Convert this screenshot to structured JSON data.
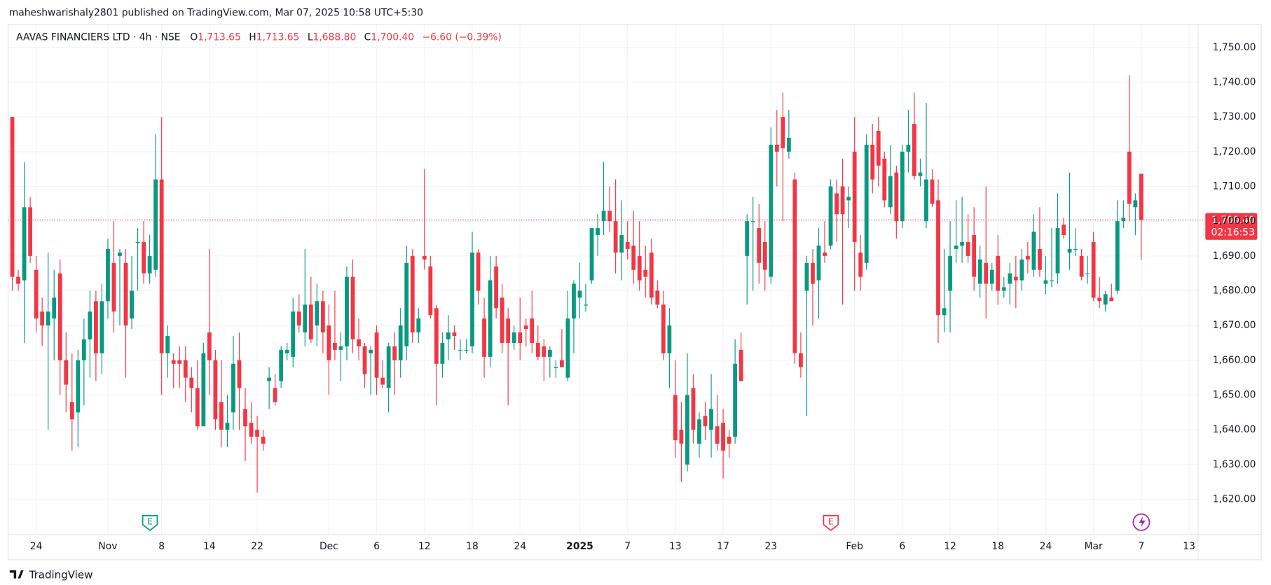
{
  "header": {
    "published": "maheshwarishaly2801 published on TradingView.com, Mar 07, 2025 10:58 UTC+5:30",
    "symbol": "AAVAS FINANCIERS LTD · 4h · NSE",
    "o_key": "O",
    "o": "1,713.65",
    "h_key": "H",
    "h": "1,713.65",
    "l_key": "L",
    "l": "1,688.80",
    "c_key": "C",
    "c": "1,700.40",
    "change": "−6.60 (−0.39%)"
  },
  "last_price": {
    "label": "1,700.40",
    "countdown": "02:16:53"
  },
  "events": [
    {
      "label": "E"
    },
    {
      "label": "E"
    }
  ],
  "footer": "TradingView",
  "chart_data": {
    "type": "candlestick",
    "up_color": "#089981",
    "down_color": "#f23645",
    "grid": true,
    "xlim": [
      -0.7,
      198.5
    ],
    "ylim": [
      1609.9,
      1756.6
    ],
    "yticks": [
      {
        "value": 1620,
        "label": "1,620.00"
      },
      {
        "value": 1630,
        "label": "1,630.00"
      },
      {
        "value": 1640,
        "label": "1,640.00"
      },
      {
        "value": 1650,
        "label": "1,650.00"
      },
      {
        "value": 1660,
        "label": "1,660.00"
      },
      {
        "value": 1670,
        "label": "1,670.00"
      },
      {
        "value": 1680,
        "label": "1,680.00"
      },
      {
        "value": 1690,
        "label": "1,690.00"
      },
      {
        "value": 1700,
        "label": "1,700.00"
      },
      {
        "value": 1710,
        "label": "1,710.00"
      },
      {
        "value": 1720,
        "label": "1,720.00"
      },
      {
        "value": 1730,
        "label": "1,730.00"
      },
      {
        "value": 1740,
        "label": "1,740.00"
      },
      {
        "value": 1750,
        "label": "1,750.00"
      }
    ],
    "xticks": [
      {
        "value": 4,
        "label": "24"
      },
      {
        "value": 16,
        "label": "Nov"
      },
      {
        "value": 25,
        "label": "8"
      },
      {
        "value": 33,
        "label": "14"
      },
      {
        "value": 41,
        "label": "22"
      },
      {
        "value": 53,
        "label": "Dec"
      },
      {
        "value": 61,
        "label": "6"
      },
      {
        "value": 69,
        "label": "12"
      },
      {
        "value": 77,
        "label": "18"
      },
      {
        "value": 85,
        "label": "24"
      },
      {
        "value": 95,
        "label": "2025"
      },
      {
        "value": 103,
        "label": "7"
      },
      {
        "value": 111,
        "label": "13"
      },
      {
        "value": 119,
        "label": "17"
      },
      {
        "value": 127,
        "label": "23"
      },
      {
        "value": 141,
        "label": "Feb"
      },
      {
        "value": 149,
        "label": "6"
      },
      {
        "value": 157,
        "label": "12"
      },
      {
        "value": 165,
        "label": "18"
      },
      {
        "value": 173,
        "label": "24"
      },
      {
        "value": 181,
        "label": "Mar"
      },
      {
        "value": 189,
        "label": "7"
      },
      {
        "value": 197,
        "label": "13"
      }
    ],
    "ohlc": [
      [
        1730,
        1730,
        1680,
        1684
      ],
      [
        1684,
        1686,
        1680,
        1682
      ],
      [
        1683,
        1717,
        1665,
        1704
      ],
      [
        1704,
        1707,
        1688,
        1690
      ],
      [
        1686,
        1690,
        1668,
        1672
      ],
      [
        1674,
        1678,
        1664,
        1670
      ],
      [
        1670,
        1691,
        1640,
        1674
      ],
      [
        1672,
        1686,
        1660,
        1678
      ],
      [
        1685,
        1689,
        1650,
        1660
      ],
      [
        1660,
        1668,
        1645,
        1653
      ],
      [
        1648,
        1662,
        1634,
        1643
      ],
      [
        1645,
        1663,
        1635,
        1660
      ],
      [
        1660,
        1672,
        1647,
        1666
      ],
      [
        1666,
        1680,
        1655,
        1674
      ],
      [
        1677,
        1680,
        1654,
        1662
      ],
      [
        1662,
        1682,
        1656,
        1677
      ],
      [
        1677,
        1695,
        1672,
        1692
      ],
      [
        1688,
        1700,
        1668,
        1674
      ],
      [
        1690,
        1692,
        1670,
        1691
      ],
      [
        1688,
        1692,
        1655,
        1670
      ],
      [
        1672,
        1690,
        1669,
        1680
      ],
      [
        1694,
        1698,
        1680,
        1694
      ],
      [
        1694,
        1700,
        1682,
        1685
      ],
      [
        1685,
        1696,
        1682,
        1690
      ],
      [
        1686,
        1725,
        1684,
        1712
      ],
      [
        1712,
        1730,
        1650,
        1662
      ],
      [
        1662,
        1670,
        1655,
        1667
      ],
      [
        1660,
        1662,
        1652,
        1659
      ],
      [
        1660,
        1664,
        1652,
        1659
      ],
      [
        1660,
        1664,
        1648,
        1655
      ],
      [
        1655,
        1658,
        1645,
        1652
      ],
      [
        1652,
        1660,
        1640,
        1641
      ],
      [
        1641,
        1665,
        1642,
        1662
      ],
      [
        1668,
        1692,
        1650,
        1660
      ],
      [
        1660,
        1663,
        1640,
        1643
      ],
      [
        1648,
        1660,
        1635,
        1640
      ],
      [
        1640,
        1650,
        1635,
        1642
      ],
      [
        1645,
        1667,
        1640,
        1659
      ],
      [
        1660,
        1668,
        1640,
        1652
      ],
      [
        1646,
        1652,
        1631,
        1641
      ],
      [
        1642,
        1648,
        1636,
        1638
      ],
      [
        1640,
        1644,
        1622,
        1638
      ],
      [
        1638,
        1640,
        1634,
        1636
      ],
      [
        1654,
        1658,
        1646,
        1655
      ],
      [
        1652,
        1656,
        1647,
        1648
      ],
      [
        1654,
        1664,
        1652,
        1663
      ],
      [
        1662,
        1665,
        1660,
        1663
      ],
      [
        1661,
        1678,
        1658,
        1674
      ],
      [
        1674,
        1679,
        1668,
        1670
      ],
      [
        1668,
        1692,
        1664,
        1676
      ],
      [
        1676,
        1684,
        1665,
        1666
      ],
      [
        1670,
        1682,
        1664,
        1677
      ],
      [
        1677,
        1680,
        1662,
        1668
      ],
      [
        1670,
        1676,
        1650,
        1660
      ],
      [
        1665,
        1680,
        1660,
        1663
      ],
      [
        1663,
        1668,
        1654,
        1664
      ],
      [
        1664,
        1687,
        1660,
        1684
      ],
      [
        1684,
        1689,
        1662,
        1666
      ],
      [
        1666,
        1672,
        1660,
        1664
      ],
      [
        1664,
        1665,
        1652,
        1656
      ],
      [
        1662,
        1664,
        1650,
        1663
      ],
      [
        1668,
        1670,
        1650,
        1655
      ],
      [
        1655,
        1660,
        1652,
        1653
      ],
      [
        1652,
        1665,
        1645,
        1664
      ],
      [
        1664,
        1668,
        1650,
        1660
      ],
      [
        1660,
        1675,
        1655,
        1670
      ],
      [
        1664,
        1693,
        1660,
        1688
      ],
      [
        1690,
        1692,
        1665,
        1668
      ],
      [
        1668,
        1675,
        1665,
        1672
      ],
      [
        1690,
        1715,
        1686,
        1689
      ],
      [
        1687,
        1690,
        1672,
        1673
      ],
      [
        1675,
        1676,
        1647,
        1659
      ],
      [
        1659,
        1668,
        1655,
        1665
      ],
      [
        1666,
        1673,
        1660,
        1668
      ],
      [
        1668,
        1670,
        1663,
        1667
      ],
      [
        1663,
        1666,
        1660,
        1663
      ],
      [
        1663,
        1666,
        1662,
        1663
      ],
      [
        1664,
        1697,
        1662,
        1691
      ],
      [
        1691,
        1692,
        1676,
        1680
      ],
      [
        1672,
        1678,
        1655,
        1661
      ],
      [
        1661,
        1690,
        1658,
        1683
      ],
      [
        1687,
        1690,
        1672,
        1675
      ],
      [
        1678,
        1682,
        1662,
        1665
      ],
      [
        1672,
        1675,
        1647,
        1665
      ],
      [
        1665,
        1670,
        1663,
        1668
      ],
      [
        1668,
        1678,
        1660,
        1665
      ],
      [
        1670,
        1672,
        1664,
        1669
      ],
      [
        1672,
        1680,
        1662,
        1665
      ],
      [
        1665,
        1670,
        1660,
        1661
      ],
      [
        1664,
        1666,
        1654,
        1661
      ],
      [
        1661,
        1664,
        1655,
        1663
      ],
      [
        1658,
        1660,
        1655,
        1658
      ],
      [
        1660,
        1669,
        1658,
        1658
      ],
      [
        1655,
        1680,
        1654,
        1672
      ],
      [
        1672,
        1683,
        1662,
        1682
      ],
      [
        1678,
        1688,
        1672,
        1680
      ],
      [
        1676,
        1682,
        1674,
        1676
      ],
      [
        1683,
        1697,
        1682,
        1698
      ],
      [
        1696,
        1702,
        1690,
        1698
      ],
      [
        1700,
        1717,
        1696,
        1703
      ],
      [
        1703,
        1710,
        1697,
        1700
      ],
      [
        1700,
        1712,
        1685,
        1691
      ],
      [
        1691,
        1706,
        1683,
        1696
      ],
      [
        1694,
        1700,
        1689,
        1692
      ],
      [
        1693,
        1703,
        1682,
        1686
      ],
      [
        1690,
        1700,
        1680,
        1683
      ],
      [
        1686,
        1693,
        1678,
        1684
      ],
      [
        1691,
        1695,
        1676,
        1678
      ],
      [
        1680,
        1683,
        1675,
        1676
      ],
      [
        1676,
        1680,
        1660,
        1662
      ],
      [
        1662,
        1675,
        1652,
        1670
      ],
      [
        1650,
        1660,
        1632,
        1637
      ],
      [
        1640,
        1648,
        1625,
        1636
      ],
      [
        1630,
        1662,
        1628,
        1650
      ],
      [
        1652,
        1656,
        1636,
        1640
      ],
      [
        1636,
        1645,
        1632,
        1643
      ],
      [
        1644,
        1648,
        1637,
        1641
      ],
      [
        1640,
        1656,
        1632,
        1646
      ],
      [
        1641,
        1650,
        1634,
        1636
      ],
      [
        1642,
        1646,
        1626,
        1634
      ],
      [
        1638,
        1640,
        1632,
        1636
      ],
      [
        1638,
        1666,
        1636,
        1659
      ],
      [
        1663,
        1668,
        1654,
        1654
      ],
      [
        1690,
        1702,
        1676,
        1700
      ],
      [
        1700,
        1707,
        1680,
        1700
      ],
      [
        1698,
        1705,
        1682,
        1688
      ],
      [
        1694,
        1700,
        1680,
        1686
      ],
      [
        1684,
        1727,
        1682,
        1722
      ],
      [
        1722,
        1732,
        1710,
        1720
      ],
      [
        1730,
        1737,
        1700,
        1721
      ],
      [
        1720,
        1732,
        1718,
        1724
      ],
      [
        1712,
        1714,
        1659,
        1662
      ],
      [
        1662,
        1668,
        1655,
        1658
      ],
      [
        1680,
        1690,
        1644,
        1688
      ],
      [
        1688,
        1692,
        1670,
        1682
      ],
      [
        1683,
        1698,
        1672,
        1693
      ],
      [
        1691,
        1700,
        1688,
        1690
      ],
      [
        1693,
        1712,
        1692,
        1710
      ],
      [
        1708,
        1712,
        1694,
        1702
      ],
      [
        1710,
        1718,
        1676,
        1702
      ],
      [
        1706,
        1710,
        1698,
        1707
      ],
      [
        1720,
        1730,
        1680,
        1694
      ],
      [
        1691,
        1696,
        1680,
        1684
      ],
      [
        1688,
        1725,
        1686,
        1722
      ],
      [
        1722,
        1728,
        1708,
        1712
      ],
      [
        1726,
        1730,
        1710,
        1716
      ],
      [
        1718,
        1720,
        1704,
        1706
      ],
      [
        1704,
        1722,
        1702,
        1713
      ],
      [
        1714,
        1716,
        1695,
        1700
      ],
      [
        1700,
        1722,
        1698,
        1720
      ],
      [
        1720,
        1732,
        1714,
        1722
      ],
      [
        1728,
        1737,
        1712,
        1713
      ],
      [
        1713,
        1718,
        1710,
        1714
      ],
      [
        1700,
        1734,
        1698,
        1712
      ],
      [
        1712,
        1715,
        1704,
        1705
      ],
      [
        1706,
        1712,
        1665,
        1673
      ],
      [
        1673,
        1692,
        1668,
        1675
      ],
      [
        1680,
        1700,
        1668,
        1690
      ],
      [
        1692,
        1706,
        1688,
        1693
      ],
      [
        1693,
        1707,
        1688,
        1694
      ],
      [
        1694,
        1702,
        1688,
        1690
      ],
      [
        1696,
        1704,
        1680,
        1684
      ],
      [
        1682,
        1693,
        1678,
        1689
      ],
      [
        1688,
        1710,
        1672,
        1682
      ],
      [
        1682,
        1688,
        1680,
        1686
      ],
      [
        1690,
        1696,
        1676,
        1680
      ],
      [
        1680,
        1684,
        1678,
        1681
      ],
      [
        1682,
        1688,
        1676,
        1685
      ],
      [
        1684,
        1690,
        1675,
        1683
      ],
      [
        1683,
        1692,
        1680,
        1689
      ],
      [
        1690,
        1694,
        1685,
        1689
      ],
      [
        1686,
        1702,
        1684,
        1697
      ],
      [
        1692,
        1704,
        1684,
        1686
      ],
      [
        1682,
        1690,
        1679,
        1683
      ],
      [
        1683,
        1698,
        1681,
        1683
      ],
      [
        1685,
        1708,
        1682,
        1698
      ],
      [
        1699,
        1701,
        1695,
        1696
      ],
      [
        1691,
        1714,
        1686,
        1692
      ],
      [
        1692,
        1698,
        1690,
        1692
      ],
      [
        1690,
        1692,
        1683,
        1684
      ],
      [
        1685,
        1690,
        1682,
        1685
      ],
      [
        1694,
        1697,
        1677,
        1678
      ],
      [
        1678,
        1684,
        1675,
        1677
      ],
      [
        1676,
        1680,
        1674,
        1679
      ],
      [
        1678,
        1682,
        1677,
        1677
      ],
      [
        1680,
        1706,
        1679,
        1700
      ],
      [
        1700,
        1706,
        1698,
        1701
      ],
      [
        1720,
        1742,
        1700,
        1705
      ],
      [
        1704,
        1708,
        1696,
        1706
      ],
      [
        1713.65,
        1713.65,
        1688.8,
        1700.4
      ]
    ]
  }
}
